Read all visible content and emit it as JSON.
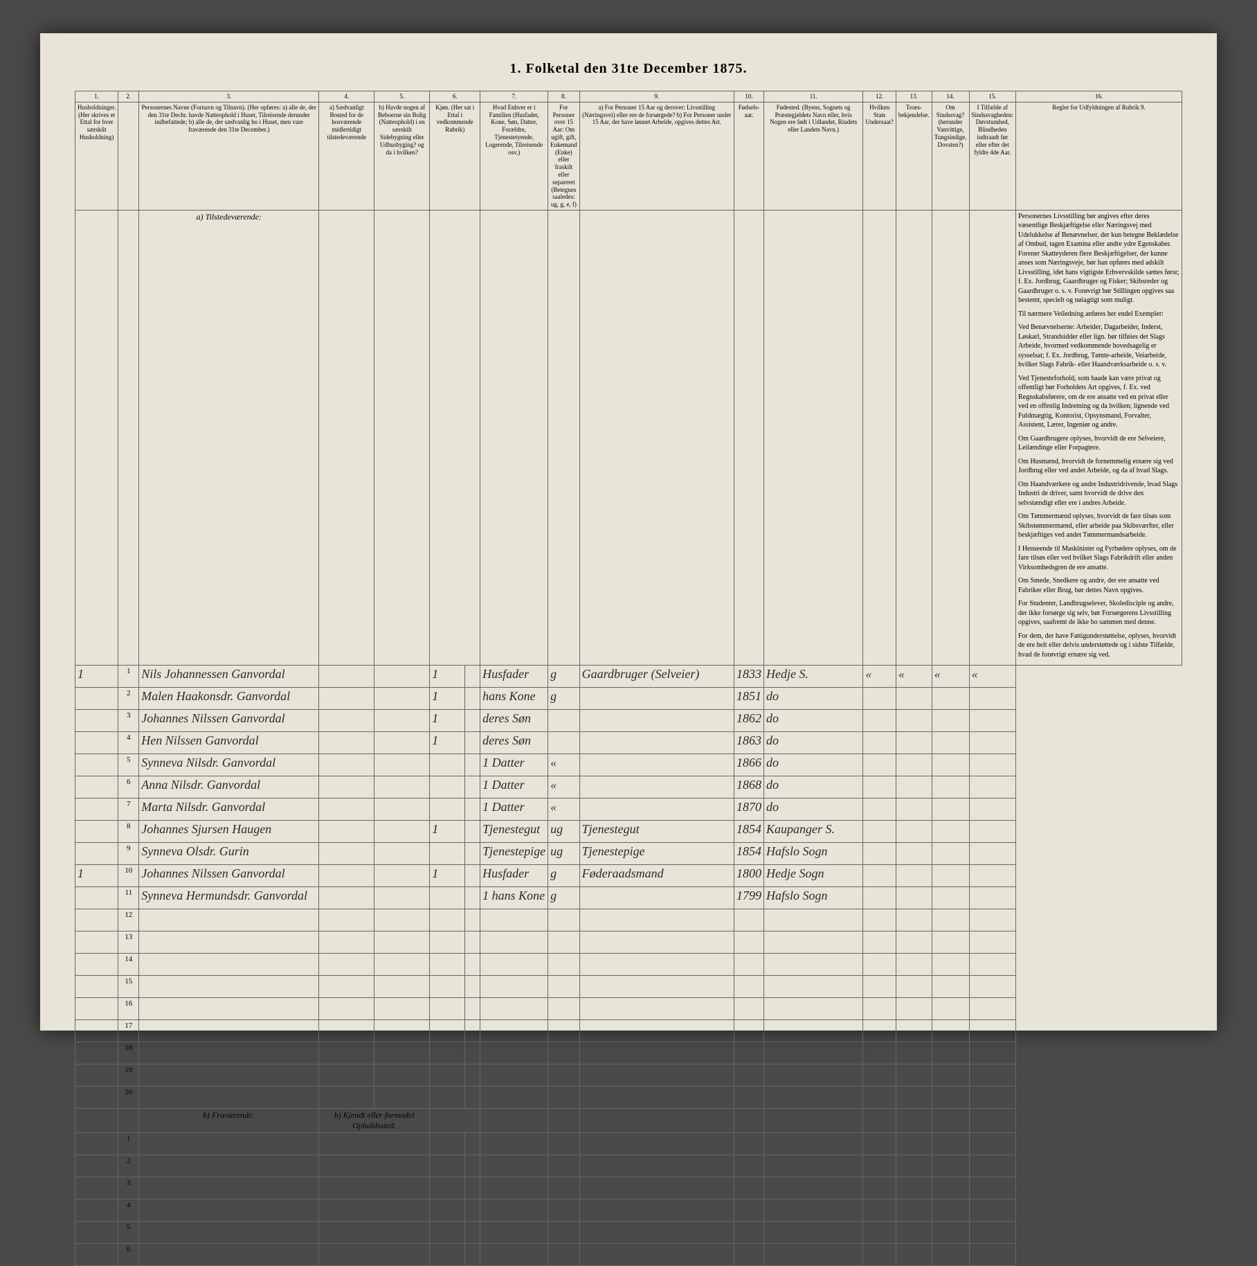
{
  "title": "1. Folketal den 31te December 1875.",
  "columns": {
    "nums": [
      "1.",
      "2.",
      "3.",
      "4.",
      "5.",
      "6.",
      "7.",
      "8.",
      "9.",
      "10.",
      "11.",
      "12.",
      "13.",
      "14.",
      "15.",
      "16."
    ],
    "headers": [
      "Husholdninger. (Her skrives et Ettal for hver særskilt Husholdning)",
      "",
      "Personernes Navne (Fornavn og Tilnavn). (Her opføres: a) alle de, der den 31te Decbr. havde Natteophold i Huset, Tilreisende derunder indbefattede; b) alle de, der sædvanlig bo i Huset, men vare fraværende den 31te December.)",
      "a) Sædvanligt Bosted for de hosværende midlertidigt tilstedeværende",
      "b) Havde nogen af Beboerne sin Bolig (Natteophold) i en særskilt Sidebygning eller Udhusbyging? og da i hvilken?",
      "Kjøn. (Her sat i Ettal i vedkommende Rubrik)",
      "Hvad Enhver er i Familien (Husfader, Kone, Søn, Datter, Forældre, Tjenestetyende, Logerende, Tilreisende osv.)",
      "For Personer over 15 Aar: Om ugift, gift, Enkemand (Enke) eller fraskilt eller separeret (Betegnes saaledes: ug, g, e, f)",
      "a) For Personer 15 Aar og derover: Livsstilling (Næringsvei) eller ere de forsørgede? b) For Personer under 15 Aar, der have lønnet Arbeide, opgives dettes Art.",
      "Fødsels-aar.",
      "Fødested. (Byens, Sognets og Præstegjeldets Navn eller, hvis Nogen ere født i Udlandet, Riudets eller Landets Navn.)",
      "Hvilken Stats Undersaat?",
      "Troes-bekjendelse.",
      "Om Sindssvag? (herunder Vanvittige, Tungsindige, Dovsten?)",
      "I Tilfælde af Sindssvagheden: Døvstumhed, Blindheden indtraadt før eller efter det fyldte 4de Aar.",
      "Regler for Udfyldningen af Rubrik 9."
    ]
  },
  "section_a": "a) Tilstedeværende:",
  "section_b": "b) Fraværende:",
  "section_b_col": "b) Kjendt eller formodet Opholdssted.",
  "rows": [
    {
      "hh": "1",
      "n": "1",
      "name": "Nils Johannessen Ganvordal",
      "c4": "",
      "c5": "",
      "c6": "1",
      "c7": "Husfader",
      "c8": "g",
      "c9": "Gaardbruger (Selveier)",
      "c10": "1833",
      "c11": "Hedje S.",
      "c12": "«",
      "c13": "«",
      "c14": "«",
      "c15": "«"
    },
    {
      "hh": "",
      "n": "2",
      "name": "Malen Haakonsdr. Ganvordal",
      "c4": "",
      "c5": "",
      "c6": "1",
      "c7": "hans Kone",
      "c8": "g",
      "c9": "",
      "c10": "1851",
      "c11": "do",
      "c12": "",
      "c13": "",
      "c14": "",
      "c15": ""
    },
    {
      "hh": "",
      "n": "3",
      "name": "Johannes Nilssen Ganvordal",
      "c4": "",
      "c5": "",
      "c6": "1",
      "c7": "deres Søn",
      "c8": "",
      "c9": "",
      "c10": "1862",
      "c11": "do",
      "c12": "",
      "c13": "",
      "c14": "",
      "c15": ""
    },
    {
      "hh": "",
      "n": "4",
      "name": "Hen Nilssen Ganvordal",
      "c4": "",
      "c5": "",
      "c6": "1",
      "c7": "deres Søn",
      "c8": "",
      "c9": "",
      "c10": "1863",
      "c11": "do",
      "c12": "",
      "c13": "",
      "c14": "",
      "c15": ""
    },
    {
      "hh": "",
      "n": "5",
      "name": "Synneva Nilsdr. Ganvordal",
      "c4": "",
      "c5": "",
      "c6": "",
      "c7": "1 Datter",
      "c8": "«",
      "c9": "",
      "c10": "1866",
      "c11": "do",
      "c12": "",
      "c13": "",
      "c14": "",
      "c15": ""
    },
    {
      "hh": "",
      "n": "6",
      "name": "Anna Nilsdr. Ganvordal",
      "c4": "",
      "c5": "",
      "c6": "",
      "c7": "1 Datter",
      "c8": "«",
      "c9": "",
      "c10": "1868",
      "c11": "do",
      "c12": "",
      "c13": "",
      "c14": "",
      "c15": ""
    },
    {
      "hh": "",
      "n": "7",
      "name": "Marta Nilsdr. Ganvordal",
      "c4": "",
      "c5": "",
      "c6": "",
      "c7": "1 Datter",
      "c8": "«",
      "c9": "",
      "c10": "1870",
      "c11": "do",
      "c12": "",
      "c13": "",
      "c14": "",
      "c15": ""
    },
    {
      "hh": "",
      "n": "8",
      "name": "Johannes Sjursen Haugen",
      "c4": "",
      "c5": "",
      "c6": "1",
      "c7": "Tjenestegut",
      "c8": "ug",
      "c9": "Tjenestegut",
      "c10": "1854",
      "c11": "Kaupanger S.",
      "c12": "",
      "c13": "",
      "c14": "",
      "c15": ""
    },
    {
      "hh": "",
      "n": "9",
      "name": "Synneva Olsdr. Gurin",
      "c4": "",
      "c5": "",
      "c6": "",
      "c7": "Tjenestepige",
      "c8": "ug",
      "c9": "Tjenestepige",
      "c10": "1854",
      "c11": "Hafslo Sogn",
      "c12": "",
      "c13": "",
      "c14": "",
      "c15": ""
    },
    {
      "hh": "1",
      "n": "10",
      "name": "Johannes Nilssen Ganvordal",
      "c4": "",
      "c5": "",
      "c6": "1",
      "c7": "Husfader",
      "c8": "g",
      "c9": "Føderaadsmand",
      "c10": "1800",
      "c11": "Hedje Sogn",
      "c12": "",
      "c13": "",
      "c14": "",
      "c15": ""
    },
    {
      "hh": "",
      "n": "11",
      "name": "Synneva Hermundsdr. Ganvordal",
      "c4": "",
      "c5": "",
      "c6": "",
      "c7": "1 hans Kone",
      "c8": "g",
      "c9": "",
      "c10": "1799",
      "c11": "Hafslo Sogn",
      "c12": "",
      "c13": "",
      "c14": "",
      "c15": ""
    }
  ],
  "empty_rows_a": [
    "12",
    "13",
    "14",
    "15",
    "16",
    "17",
    "18",
    "19",
    "20"
  ],
  "empty_rows_b": [
    "1",
    "2",
    "3",
    "4",
    "5",
    "6"
  ],
  "instructions": [
    "Personernes Livsstilling bør angives efter deres væsentlige Beskjæftigelse eller Næringsvej med Udelukkelse af Benævnelser, der kun betegne Beklædelse af Ombud, tagen Examina eller andre ydre Egenskaber. Forener Skatteyderen flere Beskjæftigelser, der kunne anses som Næringsveje, bør han opføres med adskilt Livsstilling, idet hans vigtigste Erhvervskilde sættes først; f. Ex. Jordbrug, Gaardbruger og Fisker; Skibsreder og Gaardbruger o. s. v. Forøvrigt bør Stillingen opgives saa bestemt, specielt og nøiagtigt som muligt.",
    "Til nærmere Veiledning anføres her endel Exempler:",
    "Ved Benævnelserne: Arbeider, Dagarbeider, Inderst, Løskarl, Strandsidder eller lign. bør tilføies det Slags Arbeide, hvormed vedkommende hovedsagelig er sysselsat; f. Ex. Jordbrug, Tømte-arbeide, Veiarbeide, hvilket Slags Fabrik- eller Haandværksarbeide o. s. v.",
    "Ved Tjenesteforhold, som baade kan være privat og offentligt bør Forholdets Art opgives, f. Ex. ved Regnskabsførere, om de ere ansatte ved en privat eller ved en offenlig Indretning og da hvilken; lignende ved Fuldmægtig, Kontorist, Opsynsmand, Forvalter, Assistent, Lærer, Ingeniør og andre.",
    "Om Gaardbrugere oplyses, hvorvidt de ere Selveiere, Leilændinge eller Forpagtere.",
    "Om Husmænd, hvorvidt de fornemmelig ernære sig ved Jordbrug eller ved andet Arbeide, og da af hvad Slags.",
    "Om Haandværkere og andre Industridrivende, hvad Slags Industri de driver, samt hvorvidt de drive den selvstændigt eller ere i andres Arbeide.",
    "Om Tømmermænd oplyses, hvorvidt de fare tilsøs som Skibstømmermænd, eller arbeide paa Skibsværfter, eller beskjæftiges ved andet Tømmermandsarbeide.",
    "I Henseende til Maskinister og Fyrbødere oplyses, om de fare tilsøs eller ved hvilket Slags Fabrikdrift eller anden Virksomhedsgren de ere ansatte.",
    "Om Smede, Snedkere og andre, der ere ansatte ved Fabriker eller Brug, bør dettes Navn opgives.",
    "For Studenter, Landbrugselever, Skoledisciple og andre, der ikke forsørge sig selv, bør Forsørgerens Livsstilling opgives, saafremt de ikke bo sammen med denne.",
    "For dem, der have Fattigunderstøttelse, oplyses, hvorvidt de ere helt eller delvis understøttede og i sidste Tilfælde, hvad de forøvrigt ernære sig ved."
  ]
}
